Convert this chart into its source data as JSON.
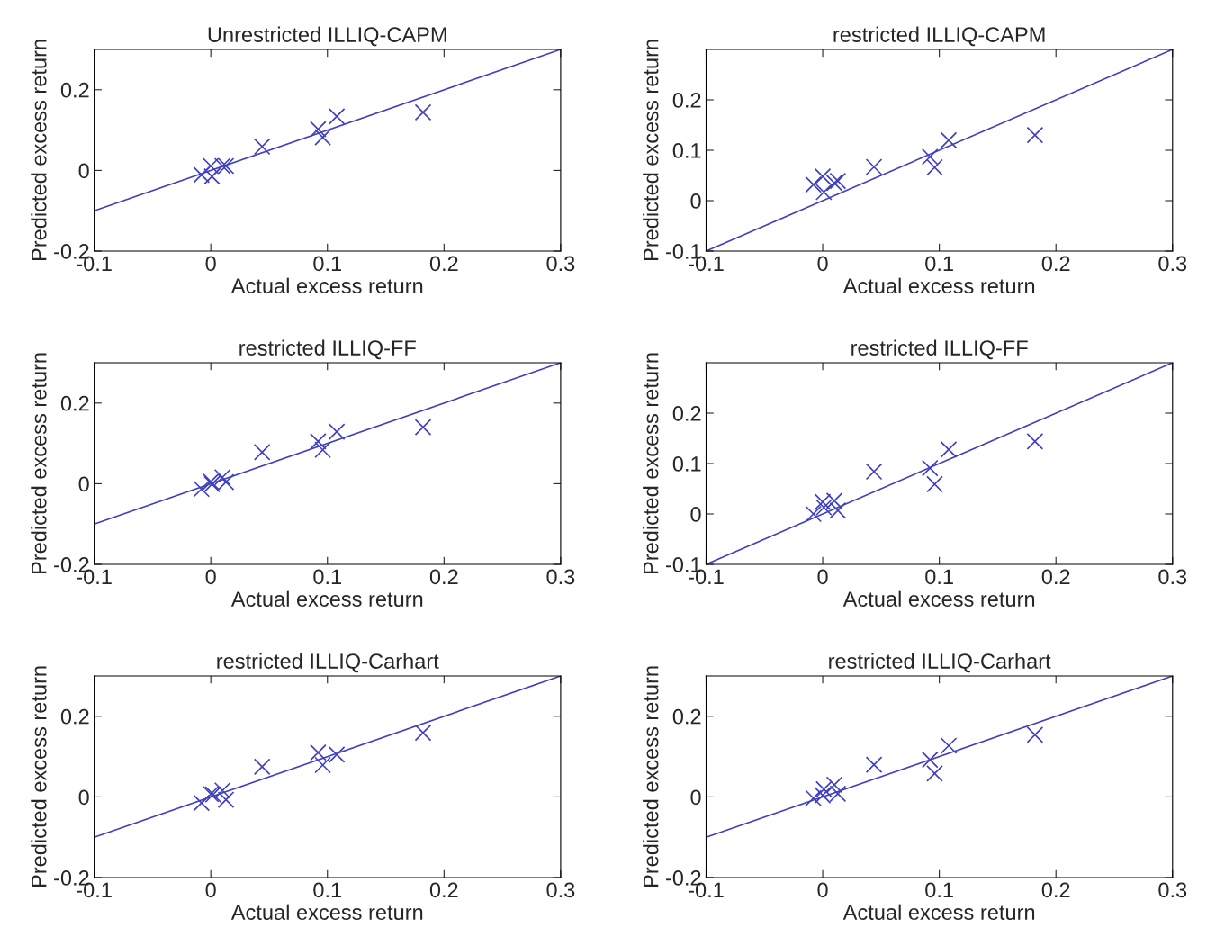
{
  "chart_data": [
    {
      "type": "scatter",
      "title": "Unrestricted ILLIQ-CAPM",
      "xlabel": "Actual excess return",
      "ylabel": "Predicted excess return",
      "xlim": [
        -0.1,
        0.3
      ],
      "ylim": [
        -0.2,
        0.3
      ],
      "xticks": [
        -0.1,
        0,
        0.1,
        0.2,
        0.3
      ],
      "yticks": [
        -0.2,
        0,
        0.2
      ],
      "series": [
        {
          "marker": "cross",
          "color": "#4040c0",
          "x": [
            -0.008,
            0.0,
            0.001,
            0.01,
            0.013,
            0.044,
            0.092,
            0.096,
            0.108,
            0.182
          ],
          "values": [
            -0.011,
            0.011,
            -0.015,
            0.011,
            0.011,
            0.059,
            0.102,
            0.082,
            0.134,
            0.144
          ]
        },
        {
          "type": "line",
          "marker": "none",
          "line_style": "solid",
          "color": "#4040c0",
          "x": [
            -0.1,
            0.3
          ],
          "values": [
            -0.1,
            0.3
          ]
        }
      ]
    },
    {
      "type": "scatter",
      "title": "restricted ILLIQ-CAPM",
      "xlabel": "Actual excess return",
      "ylabel": "Predicted excess return",
      "xlim": [
        -0.1,
        0.3
      ],
      "ylim": [
        -0.1,
        0.3
      ],
      "xticks": [
        -0.1,
        0,
        0.1,
        0.2,
        0.3
      ],
      "yticks": [
        -0.1,
        0,
        0.1,
        0.2
      ],
      "series": [
        {
          "marker": "cross",
          "color": "#4040c0",
          "x": [
            -0.008,
            0.0,
            0.001,
            0.01,
            0.013,
            0.044,
            0.092,
            0.096,
            0.108,
            0.182
          ],
          "values": [
            0.032,
            0.048,
            0.017,
            0.035,
            0.039,
            0.067,
            0.087,
            0.066,
            0.12,
            0.13
          ]
        },
        {
          "type": "line",
          "marker": "none",
          "line_style": "solid",
          "color": "#4040c0",
          "x": [
            -0.1,
            0.3
          ],
          "values": [
            -0.1,
            0.3
          ]
        }
      ]
    },
    {
      "type": "scatter",
      "title": "restricted ILLIQ-FF",
      "xlabel": "Actual excess return",
      "ylabel": "Predicted excess return",
      "xlim": [
        -0.1,
        0.3
      ],
      "ylim": [
        -0.2,
        0.3
      ],
      "xticks": [
        -0.1,
        0,
        0.1,
        0.2,
        0.3
      ],
      "yticks": [
        -0.2,
        0,
        0.2
      ],
      "series": [
        {
          "marker": "cross",
          "color": "#4040c0",
          "x": [
            -0.008,
            0.0,
            0.001,
            0.01,
            0.013,
            0.044,
            0.092,
            0.096,
            0.108,
            0.182
          ],
          "values": [
            -0.013,
            0.005,
            -0.001,
            0.016,
            0.004,
            0.078,
            0.105,
            0.084,
            0.129,
            0.14
          ]
        },
        {
          "type": "line",
          "marker": "none",
          "line_style": "solid",
          "color": "#4040c0",
          "x": [
            -0.1,
            0.3
          ],
          "values": [
            -0.1,
            0.3
          ]
        }
      ]
    },
    {
      "type": "scatter",
      "title": "restricted ILLIQ-FF",
      "xlabel": "Actual excess return",
      "ylabel": "Predicted excess return",
      "xlim": [
        -0.1,
        0.3
      ],
      "ylim": [
        -0.1,
        0.3
      ],
      "xticks": [
        -0.1,
        0,
        0.1,
        0.2,
        0.3
      ],
      "yticks": [
        -0.1,
        0,
        0.1,
        0.2
      ],
      "series": [
        {
          "marker": "cross",
          "color": "#4040c0",
          "x": [
            -0.008,
            0.0,
            0.001,
            0.01,
            0.013,
            0.044,
            0.092,
            0.096,
            0.108,
            0.182
          ],
          "values": [
            0.0,
            0.024,
            0.013,
            0.026,
            0.007,
            0.084,
            0.091,
            0.059,
            0.128,
            0.144
          ]
        },
        {
          "type": "line",
          "marker": "none",
          "line_style": "solid",
          "color": "#4040c0",
          "x": [
            -0.1,
            0.3
          ],
          "values": [
            -0.1,
            0.3
          ]
        }
      ]
    },
    {
      "type": "scatter",
      "title": "restricted ILLIQ-Carhart",
      "xlabel": "Actual excess return",
      "ylabel": "Predicted excess return",
      "xlim": [
        -0.1,
        0.3
      ],
      "ylim": [
        -0.2,
        0.3
      ],
      "xticks": [
        -0.1,
        0,
        0.1,
        0.2,
        0.3
      ],
      "yticks": [
        -0.2,
        0,
        0.2
      ],
      "series": [
        {
          "marker": "cross",
          "color": "#4040c0",
          "x": [
            -0.008,
            0.0,
            0.002,
            0.01,
            0.013,
            0.044,
            0.092,
            0.096,
            0.108,
            0.182
          ],
          "values": [
            -0.015,
            0.007,
            0.006,
            0.016,
            -0.007,
            0.075,
            0.11,
            0.079,
            0.105,
            0.159
          ]
        },
        {
          "type": "line",
          "marker": "none",
          "line_style": "solid",
          "color": "#4040c0",
          "x": [
            -0.1,
            0.3
          ],
          "values": [
            -0.1,
            0.3
          ]
        }
      ]
    },
    {
      "type": "scatter",
      "title": "restricted ILLIQ-Carhart",
      "xlabel": "Actual excess return",
      "ylabel": "Predicted excess return",
      "xlim": [
        -0.1,
        0.3
      ],
      "ylim": [
        -0.2,
        0.3
      ],
      "xticks": [
        -0.1,
        0,
        0.1,
        0.2,
        0.3
      ],
      "yticks": [
        -0.2,
        0,
        0.2
      ],
      "series": [
        {
          "marker": "cross",
          "color": "#4040c0",
          "x": [
            -0.008,
            0.0,
            0.001,
            0.01,
            0.013,
            0.044,
            0.092,
            0.096,
            0.108,
            0.182
          ],
          "values": [
            -0.003,
            0.004,
            0.019,
            0.03,
            0.008,
            0.08,
            0.092,
            0.058,
            0.127,
            0.154
          ]
        },
        {
          "type": "line",
          "marker": "none",
          "line_style": "solid",
          "color": "#4040c0",
          "x": [
            -0.1,
            0.3
          ],
          "values": [
            -0.1,
            0.3
          ]
        }
      ]
    }
  ]
}
